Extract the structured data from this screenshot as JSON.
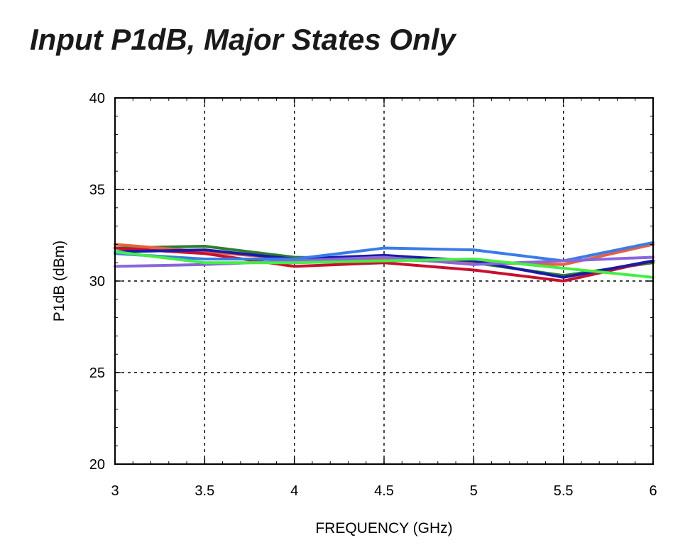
{
  "chart_data": {
    "type": "line",
    "title": "Input P1dB, Major States Only",
    "xlabel": "FREQUENCY (GHz)",
    "ylabel": "P1dB  (dBm)",
    "xlim": [
      3,
      6
    ],
    "ylim": [
      20,
      40
    ],
    "xticks": [
      "3",
      "3.5",
      "4",
      "4.5",
      "5",
      "5.5",
      "6"
    ],
    "yticks": [
      "20",
      "25",
      "30",
      "35",
      "40"
    ],
    "grid": true,
    "legend": "none",
    "x": [
      3,
      3.5,
      4,
      4.5,
      5,
      5.5,
      6
    ],
    "series": [
      {
        "color": "#2e7d32",
        "values": [
          31.8,
          31.9,
          31.3,
          31.2,
          31.0,
          30.3,
          31.0
        ]
      },
      {
        "color": "#e8613c",
        "values": [
          32.0,
          31.6,
          31.2,
          31.2,
          31.0,
          30.9,
          32.0
        ]
      },
      {
        "color": "#c8102e",
        "values": [
          31.8,
          31.5,
          30.8,
          31.0,
          30.6,
          30.0,
          31.1
        ]
      },
      {
        "color": "#1a1aa8",
        "values": [
          31.6,
          31.7,
          31.2,
          31.4,
          31.1,
          30.2,
          31.1
        ]
      },
      {
        "color": "#3a7be8",
        "values": [
          31.5,
          31.2,
          31.2,
          31.8,
          31.7,
          31.1,
          32.1
        ]
      },
      {
        "color": "#8866dd",
        "values": [
          30.8,
          30.9,
          31.1,
          31.3,
          30.9,
          31.1,
          31.3
        ]
      },
      {
        "color": "#44ee44",
        "values": [
          31.6,
          31.0,
          31.0,
          31.1,
          31.2,
          30.7,
          30.2
        ]
      }
    ]
  }
}
